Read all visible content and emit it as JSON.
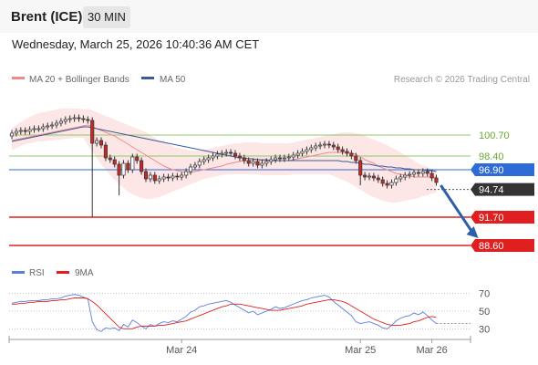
{
  "header": {
    "instrument": "Brent (ICE)",
    "timeframe": "30 MIN",
    "datetime": "Wednesday, March 25, 2026 10:40:36 AM CET"
  },
  "legend": {
    "ma20_bb": "MA 20 + Bollinger Bands",
    "ma50": "MA 50",
    "credit": "Research © 2026 Trading Central",
    "rsi": "RSI",
    "ma9": "9MA"
  },
  "colors": {
    "ma20": "#f08a8a",
    "ma50": "#3a5a9c",
    "bollinger_fill": "#fde3e3",
    "up_candle": "#ffffff",
    "down_candle": "#c62828",
    "support": "#e02020",
    "resistance": "#8fc86a",
    "pivot": "#2e6bd6",
    "rsi_line": "#5b7fd8",
    "rsi_ma": "#e02020"
  },
  "chart_data": [
    {
      "type": "candlestick",
      "y_range": [
        86.5,
        103.5
      ],
      "x_labels": [
        {
          "text": "Mar 24",
          "index": 38
        },
        {
          "text": "Mar 25",
          "index": 78
        },
        {
          "text": "Mar 26",
          "index": 94
        }
      ],
      "price_levels": [
        {
          "label": "100.70",
          "value": 100.7,
          "kind": "resistance"
        },
        {
          "label": "98.40",
          "value": 98.4,
          "kind": "resistance"
        },
        {
          "label": "96.90",
          "value": 96.9,
          "kind": "pivot"
        },
        {
          "label": "94.74",
          "value": 94.74,
          "kind": "last"
        },
        {
          "label": "91.70",
          "value": 91.7,
          "kind": "support"
        },
        {
          "label": "88.60",
          "value": 88.6,
          "kind": "support"
        }
      ],
      "close": [
        100.9,
        101.1,
        101.2,
        101.1,
        101.3,
        101.4,
        101.4,
        101.6,
        101.7,
        101.8,
        102.0,
        102.2,
        102.4,
        102.5,
        102.6,
        102.5,
        102.4,
        102.3,
        99.8,
        100.1,
        99.6,
        98.2,
        98.0,
        97.5,
        96.3,
        97.6,
        96.9,
        98.3,
        97.9,
        96.7,
        95.9,
        96.3,
        95.7,
        95.9,
        96.1,
        96.0,
        96.2,
        96.1,
        96.3,
        96.7,
        97.2,
        97.4,
        97.8,
        98.0,
        98.2,
        98.4,
        98.6,
        98.7,
        98.8,
        98.7,
        98.4,
        98.2,
        97.9,
        97.6,
        97.8,
        97.4,
        97.6,
        97.8,
        98.0,
        98.2,
        98.1,
        98.2,
        98.3,
        98.5,
        98.7,
        98.9,
        99.1,
        99.3,
        99.5,
        99.6,
        99.7,
        99.6,
        99.4,
        99.1,
        98.9,
        98.7,
        98.4,
        97.9,
        96.3,
        96.1,
        96.2,
        96.0,
        95.8,
        95.4,
        95.2,
        95.5,
        95.9,
        96.1,
        96.3,
        96.4,
        96.6,
        96.5,
        96.7,
        96.5,
        96.0,
        95.5
      ],
      "ma20": [
        100.1,
        100.2,
        100.3,
        100.4,
        100.5,
        100.6,
        100.7,
        100.8,
        100.9,
        101.0,
        101.1,
        101.2,
        101.3,
        101.4,
        101.5,
        101.6,
        101.7,
        101.8,
        101.6,
        101.4,
        101.2,
        101.0,
        100.8,
        100.6,
        100.3,
        100.0,
        99.7,
        99.4,
        99.1,
        98.8,
        98.5,
        98.2,
        97.9,
        97.6,
        97.3,
        97.1,
        96.9,
        96.8,
        96.7,
        96.6,
        96.6,
        96.7,
        96.8,
        96.9,
        97.0,
        97.1,
        97.2,
        97.3,
        97.5,
        97.6,
        97.7,
        97.8,
        97.9,
        97.9,
        98.0,
        98.0,
        97.9,
        97.9,
        97.9,
        97.9,
        97.9,
        97.9,
        97.9,
        98.0,
        98.1,
        98.2,
        98.3,
        98.4,
        98.5,
        98.6,
        98.7,
        98.8,
        98.8,
        98.8,
        98.8,
        98.8,
        98.7,
        98.6,
        98.3,
        98.0,
        97.8,
        97.6,
        97.3,
        97.1,
        96.9,
        96.7,
        96.5,
        96.4,
        96.3,
        96.2,
        96.1,
        96.1,
        96.1,
        96.1,
        96.1,
        96.1
      ],
      "ma50": [
        100.0,
        100.1,
        100.2,
        100.3,
        100.4,
        100.5,
        100.6,
        100.7,
        100.8,
        100.9,
        101.0,
        101.1,
        101.2,
        101.3,
        101.4,
        101.5,
        101.6,
        101.6,
        101.5,
        101.4,
        101.3,
        101.2,
        101.1,
        101.0,
        100.9,
        100.8,
        100.7,
        100.6,
        100.5,
        100.4,
        100.3,
        100.2,
        100.1,
        100.0,
        99.9,
        99.8,
        99.7,
        99.6,
        99.5,
        99.4,
        99.3,
        99.2,
        99.1,
        99.0,
        98.9,
        98.8,
        98.7,
        98.6,
        98.5,
        98.4,
        98.3,
        98.2,
        98.2,
        98.1,
        98.1,
        98.0,
        98.0,
        98.0,
        97.9,
        97.9,
        97.9,
        97.9,
        97.9,
        97.9,
        97.9,
        97.9,
        97.9,
        97.9,
        97.9,
        97.9,
        97.9,
        97.9,
        97.9,
        97.9,
        97.8,
        97.8,
        97.7,
        97.7,
        97.6,
        97.5,
        97.5,
        97.4,
        97.3,
        97.3,
        97.2,
        97.2,
        97.1,
        97.1,
        97.0,
        97.0,
        96.9,
        96.9,
        96.9,
        96.8,
        96.8,
        96.7
      ],
      "bb_upper": [
        101.5,
        101.8,
        102.1,
        102.4,
        102.7,
        102.9,
        103.1,
        103.2,
        103.3,
        103.4,
        103.5,
        103.6,
        103.6,
        103.6,
        103.6,
        103.6,
        103.5,
        103.6,
        103.4,
        103.2,
        103.0,
        102.8,
        102.6,
        102.4,
        102.2,
        102.0,
        101.8,
        101.6,
        101.4,
        101.2,
        101.0,
        100.7,
        100.4,
        100.1,
        99.9,
        99.7,
        99.5,
        99.3,
        99.2,
        99.1,
        99.0,
        99.0,
        99.0,
        99.1,
        99.2,
        99.3,
        99.4,
        99.5,
        99.6,
        99.7,
        99.8,
        99.8,
        99.9,
        99.9,
        99.9,
        99.9,
        99.8,
        99.8,
        99.8,
        99.8,
        99.8,
        99.8,
        99.8,
        99.9,
        100.0,
        100.1,
        100.2,
        100.3,
        100.4,
        100.5,
        100.6,
        100.7,
        100.8,
        100.9,
        101.0,
        101.0,
        101.0,
        100.9,
        100.8,
        100.6,
        100.4,
        100.2,
        100.0,
        99.8,
        99.6,
        99.3,
        99.1,
        98.8,
        98.5,
        98.2,
        97.9,
        97.6,
        97.4,
        97.2,
        97.0,
        96.9
      ],
      "bb_lower": [
        99.0,
        99.3,
        99.5,
        99.7,
        99.8,
        99.9,
        100.0,
        100.0,
        100.1,
        100.1,
        100.2,
        100.2,
        100.3,
        100.3,
        100.4,
        100.4,
        100.4,
        99.6,
        98.9,
        98.2,
        97.5,
        96.9,
        96.3,
        95.8,
        95.3,
        94.9,
        94.5,
        94.2,
        94.0,
        93.8,
        93.7,
        93.7,
        93.8,
        93.9,
        94.1,
        94.3,
        94.5,
        94.7,
        94.9,
        95.1,
        95.3,
        95.5,
        95.7,
        95.9,
        96.0,
        96.1,
        96.2,
        96.3,
        96.4,
        96.4,
        96.4,
        96.4,
        96.4,
        96.4,
        96.4,
        96.4,
        96.3,
        96.3,
        96.3,
        96.3,
        96.3,
        96.3,
        96.3,
        96.4,
        96.4,
        96.4,
        96.4,
        96.4,
        96.4,
        96.4,
        96.4,
        96.4,
        96.2,
        96.0,
        95.8,
        95.6,
        95.3,
        95.0,
        94.7,
        94.4,
        94.1,
        93.9,
        93.7,
        93.5,
        93.4,
        93.3,
        93.3,
        93.4,
        93.5,
        93.6,
        93.7,
        93.8,
        94.0,
        94.1,
        94.3,
        94.4
      ],
      "forecast_arrow": {
        "from_index": 96,
        "from_value": 95.2,
        "to_index": 104,
        "to_value": 89.6
      }
    },
    {
      "type": "line",
      "title": "RSI",
      "y_ticks": [
        70,
        50,
        30
      ],
      "y_range": [
        20,
        80
      ],
      "rsi": [
        59,
        60,
        61,
        61,
        62,
        62,
        62,
        63,
        63,
        64,
        64,
        65,
        67,
        68,
        69,
        68,
        66,
        64,
        38,
        29,
        27,
        31,
        30,
        31,
        28,
        35,
        32,
        40,
        37,
        33,
        30,
        35,
        33,
        36,
        38,
        37,
        39,
        38,
        41,
        44,
        49,
        51,
        55,
        56,
        58,
        59,
        60,
        61,
        62,
        60,
        57,
        54,
        51,
        48,
        50,
        46,
        48,
        50,
        52,
        55,
        53,
        54,
        56,
        58,
        60,
        62,
        63,
        65,
        66,
        67,
        68,
        66,
        61,
        57,
        53,
        49,
        45,
        38,
        36,
        37,
        38,
        36,
        34,
        31,
        30,
        34,
        39,
        42,
        44,
        45,
        48,
        46,
        49,
        45,
        40,
        36
      ],
      "rsi_ma": [
        58,
        58,
        59,
        59,
        60,
        60,
        61,
        61,
        61,
        62,
        62,
        63,
        63,
        64,
        65,
        65,
        65,
        64,
        61,
        57,
        52,
        47,
        42,
        37,
        32,
        30,
        30,
        30,
        32,
        33,
        33,
        33,
        33,
        34,
        34,
        35,
        36,
        37,
        38,
        39,
        41,
        43,
        45,
        47,
        49,
        51,
        53,
        55,
        56,
        58,
        58,
        58,
        57,
        56,
        55,
        54,
        53,
        52,
        51,
        51,
        51,
        52,
        53,
        54,
        55,
        56,
        58,
        59,
        60,
        61,
        62,
        63,
        63,
        62,
        61,
        59,
        56,
        53,
        50,
        47,
        44,
        41,
        39,
        37,
        35,
        34,
        34,
        34,
        35,
        36,
        38,
        39,
        41,
        43,
        44,
        43
      ]
    }
  ]
}
